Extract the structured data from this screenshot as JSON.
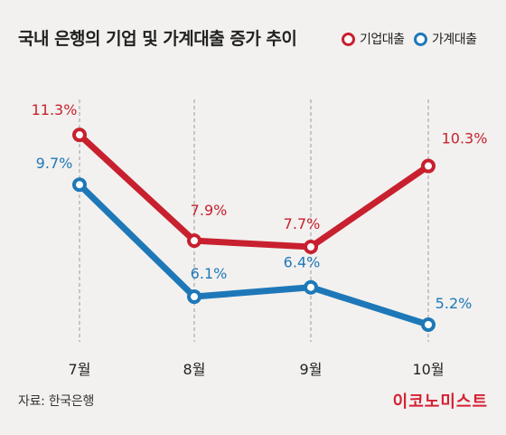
{
  "header": {
    "title": "국내 은행의 기업 및 가계대출 증가 추이"
  },
  "footer": {
    "source": "자료: 한국은행",
    "brand": "이코노미스트"
  },
  "chart_data": {
    "type": "line",
    "title": "국내 은행의 기업 및 가계대출 증가 추이",
    "categories": [
      "7월",
      "8월",
      "9월",
      "10월"
    ],
    "ylim": [
      4,
      12
    ],
    "legend_position": "top-right",
    "grid": "vertical dashed",
    "series": [
      {
        "name": "기업대출",
        "color": "#c8202e",
        "values": [
          11.3,
          7.9,
          7.7,
          10.3
        ],
        "labels": [
          "11.3%",
          "7.9%",
          "7.7%",
          "10.3%"
        ]
      },
      {
        "name": "가계대출",
        "color": "#1e78b8",
        "values": [
          9.7,
          6.1,
          6.4,
          5.2
        ],
        "labels": [
          "9.7%",
          "6.1%",
          "6.4%",
          "5.2%"
        ]
      }
    ]
  }
}
